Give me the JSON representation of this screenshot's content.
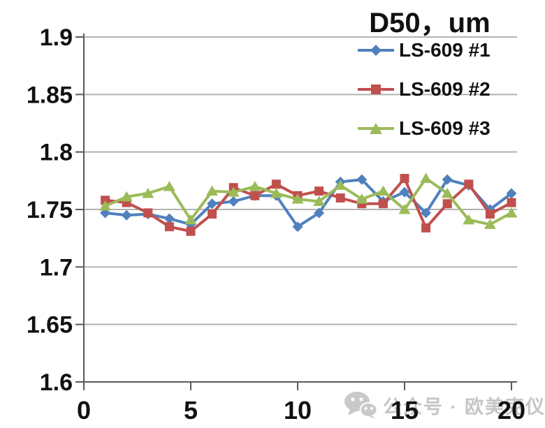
{
  "title": "D50，um",
  "watermark": {
    "icon": "wechat-icon",
    "text": "公众号 · 欧美克仪器"
  },
  "chart_data": {
    "type": "line",
    "title": "D50，um",
    "x": [
      1,
      2,
      3,
      4,
      5,
      6,
      7,
      8,
      9,
      10,
      11,
      12,
      13,
      14,
      15,
      16,
      17,
      18,
      19,
      20
    ],
    "series": [
      {
        "name": "LS-609 #1",
        "marker": "diamond",
        "color": "#4F81BD",
        "values": [
          1.747,
          1.745,
          1.746,
          1.742,
          1.737,
          1.755,
          1.757,
          1.762,
          1.762,
          1.735,
          1.747,
          1.774,
          1.776,
          1.757,
          1.765,
          1.747,
          1.776,
          1.771,
          1.75,
          1.764
        ]
      },
      {
        "name": "LS-609 #2",
        "marker": "square",
        "color": "#C0504D",
        "values": [
          1.758,
          1.756,
          1.747,
          1.735,
          1.731,
          1.746,
          1.769,
          1.762,
          1.772,
          1.762,
          1.766,
          1.76,
          1.755,
          1.755,
          1.777,
          1.734,
          1.755,
          1.772,
          1.746,
          1.756
        ]
      },
      {
        "name": "LS-609 #3",
        "marker": "triangle",
        "color": "#9BBB59",
        "values": [
          1.753,
          1.761,
          1.764,
          1.77,
          1.741,
          1.766,
          1.765,
          1.77,
          1.764,
          1.759,
          1.757,
          1.771,
          1.759,
          1.766,
          1.75,
          1.777,
          1.764,
          1.741,
          1.737,
          1.747
        ]
      }
    ],
    "xlim": [
      0,
      20
    ],
    "ylim": [
      1.6,
      1.9
    ],
    "xticks": [
      0,
      5,
      10,
      15,
      20
    ],
    "yticks": [
      1.6,
      1.65,
      1.7,
      1.75,
      1.8,
      1.85,
      1.9
    ],
    "xtick_labels": [
      "0",
      "5",
      "10",
      "15",
      "20"
    ],
    "ytick_labels": [
      "1.6",
      "1.65",
      "1.7",
      "1.75",
      "1.8",
      "1.85",
      "1.9"
    ],
    "grid": true,
    "legend_position": "top-right",
    "styles": {
      "grid_color": "#b3b3b3",
      "axis_color": "#595959",
      "tick_label_color": "#111111",
      "watermark_color": "#c5c5c5"
    }
  }
}
